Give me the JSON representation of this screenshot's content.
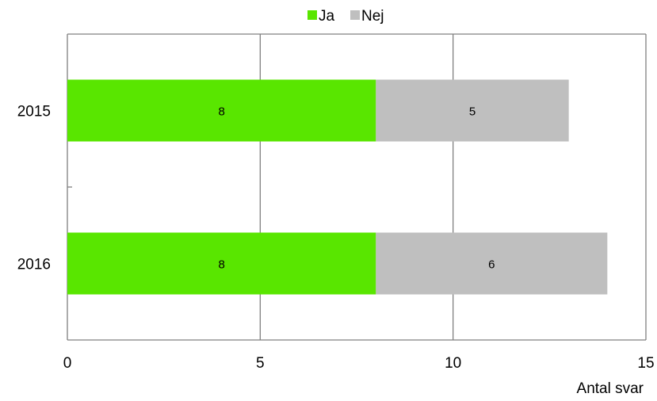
{
  "chart_data": {
    "type": "bar",
    "orientation": "horizontal",
    "stacked": true,
    "categories": [
      "2015",
      "2016"
    ],
    "series": [
      {
        "name": "Ja",
        "values": [
          8,
          8
        ],
        "color": "#59e600"
      },
      {
        "name": "Nej",
        "values": [
          5,
          6
        ],
        "color": "#bfbfbf"
      }
    ],
    "xlabel": "Antal svar",
    "ylabel": "",
    "title": "",
    "xlim": [
      0,
      15
    ],
    "xticks": [
      0,
      5,
      10,
      15
    ],
    "grid": "vertical",
    "legend_position": "top"
  }
}
